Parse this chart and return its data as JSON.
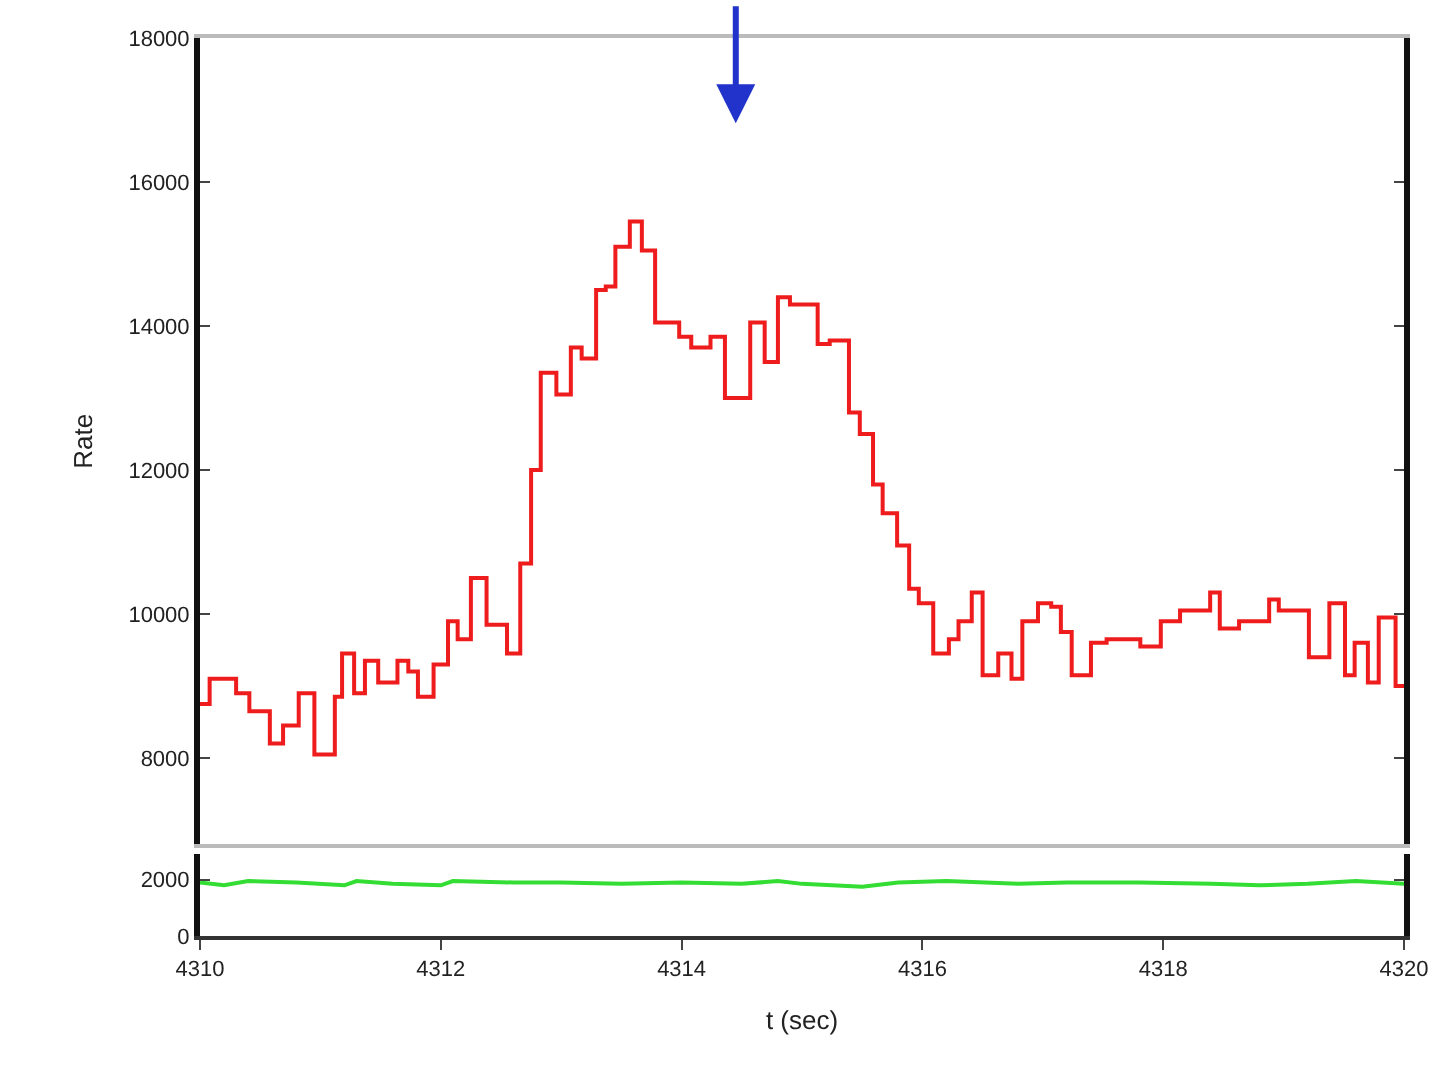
{
  "chart_data": [
    {
      "type": "step",
      "ylabel": "Rate",
      "tick_labels": "y",
      "xlim": [
        4310,
        4320
      ],
      "xticks": [
        4310,
        4312,
        4314,
        4316,
        4318,
        4320
      ],
      "ylim": [
        6800,
        18000
      ],
      "yticks": [
        8000,
        10000,
        12000,
        14000,
        16000,
        18000
      ],
      "series": [
        {
          "color": "#ee1c1c",
          "x": [
            4310.0,
            4310.08,
            4310.3,
            4310.41,
            4310.58,
            4310.69,
            4310.82,
            4310.95,
            4311.12,
            4311.18,
            4311.28,
            4311.37,
            4311.48,
            4311.64,
            4311.73,
            4311.81,
            4311.94,
            4312.06,
            4312.14,
            4312.25,
            4312.38,
            4312.55,
            4312.66,
            4312.75,
            4312.83,
            4312.96,
            4313.08,
            4313.17,
            4313.29,
            4313.37,
            4313.45,
            4313.57,
            4313.67,
            4313.78,
            4313.98,
            4314.08,
            4314.24,
            4314.36,
            4314.57,
            4314.69,
            4314.8,
            4314.9,
            4315.13,
            4315.23,
            4315.39,
            4315.48,
            4315.59,
            4315.67,
            4315.79,
            4315.89,
            4315.97,
            4316.09,
            4316.22,
            4316.3,
            4316.41,
            4316.5,
            4316.63,
            4316.74,
            4316.83,
            4316.96,
            4317.07,
            4317.15,
            4317.24,
            4317.4,
            4317.53,
            4317.81,
            4317.98,
            4318.14,
            4318.39,
            4318.47,
            4318.63,
            4318.88,
            4318.96,
            4319.21,
            4319.38,
            4319.51,
            4319.59,
            4319.7,
            4319.79,
            4319.93,
            4320.0
          ],
          "values": [
            8750,
            9100,
            8900,
            8650,
            8200,
            8450,
            8900,
            8050,
            8850,
            9450,
            8900,
            9350,
            9050,
            9350,
            9200,
            8850,
            9300,
            9900,
            9650,
            10500,
            9850,
            9450,
            10700,
            12000,
            13350,
            13050,
            13700,
            13550,
            14500,
            14550,
            15100,
            15450,
            15050,
            14050,
            13850,
            13700,
            13850,
            13000,
            14050,
            13500,
            14400,
            14300,
            13750,
            13800,
            12800,
            12500,
            11800,
            11400,
            10950,
            10350,
            10150,
            9450,
            9650,
            9900,
            10300,
            9150,
            9450,
            9100,
            9900,
            10150,
            10100,
            9750,
            9150,
            9600,
            9650,
            9550,
            9900,
            10050,
            10300,
            9800,
            9900,
            10200,
            10050,
            9400,
            10150,
            9150,
            9600,
            9050,
            9950,
            9000,
            9000
          ]
        }
      ]
    },
    {
      "type": "line",
      "xlabel": "t (sec)",
      "xlim": [
        4310,
        4320
      ],
      "xticks": [
        4310,
        4312,
        4314,
        4316,
        4318,
        4320
      ],
      "ylim": [
        0,
        2900
      ],
      "yticks": [
        0,
        2000
      ],
      "series": [
        {
          "color": "#33dd33",
          "x": [
            4310,
            4310.2,
            4310.4,
            4310.8,
            4311.2,
            4311.3,
            4311.6,
            4312,
            4312.1,
            4312.6,
            4313,
            4313.5,
            4314,
            4314.5,
            4314.8,
            4315,
            4315.5,
            4315.8,
            4316.2,
            4316.8,
            4317.2,
            4317.8,
            4318.4,
            4318.8,
            4319.2,
            4319.6,
            4320
          ],
          "values": [
            1900,
            1800,
            1950,
            1900,
            1800,
            1950,
            1850,
            1800,
            1950,
            1900,
            1900,
            1850,
            1900,
            1850,
            1950,
            1850,
            1750,
            1900,
            1950,
            1850,
            1900,
            1900,
            1850,
            1800,
            1850,
            1950,
            1850
          ]
        }
      ]
    }
  ]
}
